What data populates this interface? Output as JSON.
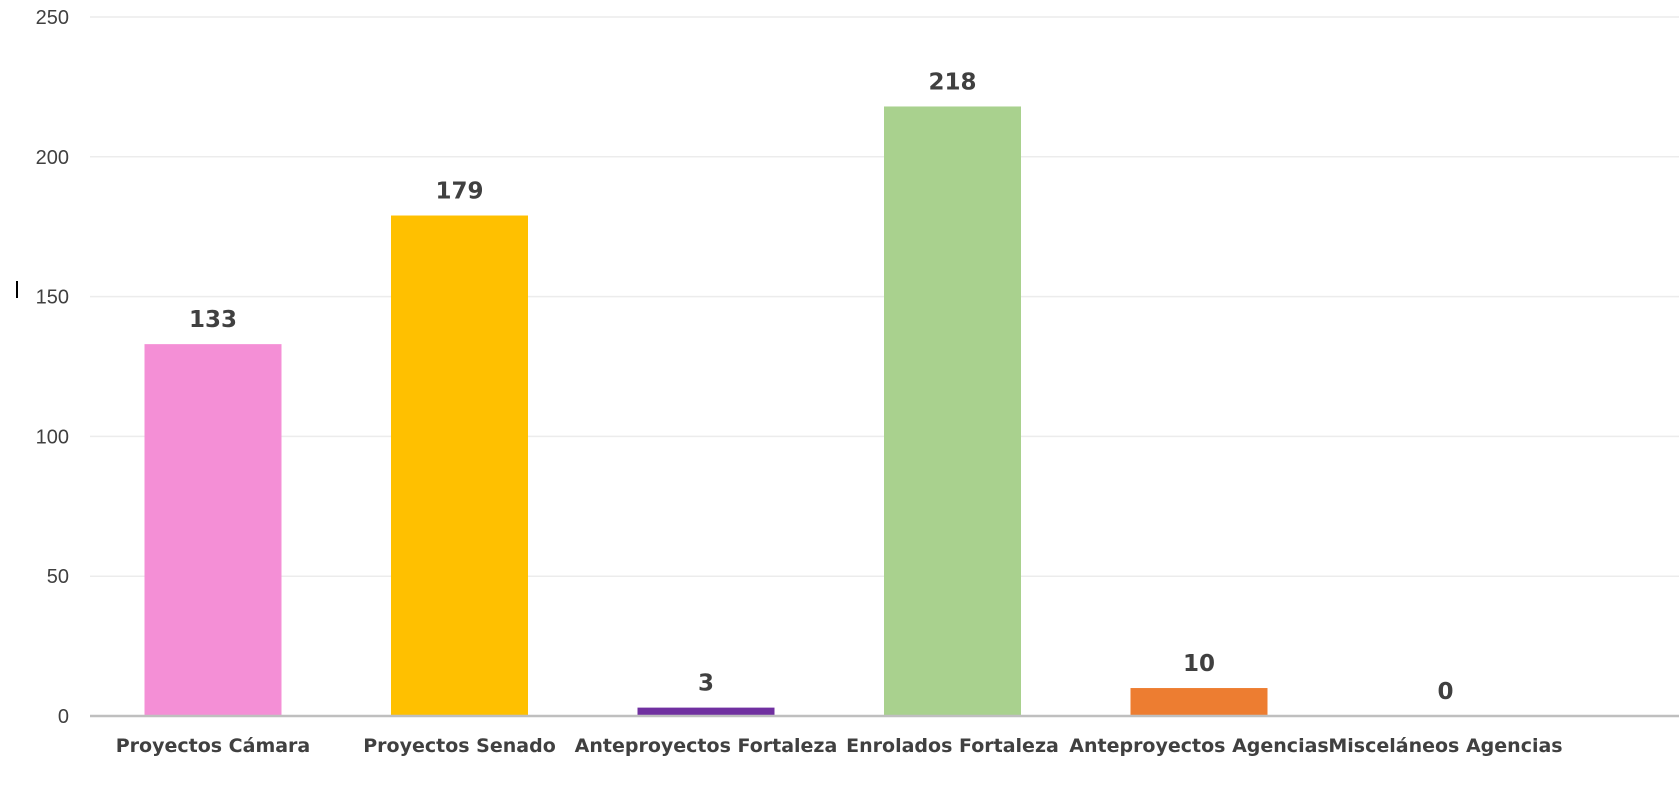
{
  "chart_data": {
    "type": "bar",
    "title": "",
    "xlabel": "",
    "ylabel": "",
    "categories": [
      "Proyectos Cámara",
      "Proyectos Senado",
      "Anteproyectos Fortaleza",
      "Enrolados Fortaleza",
      "Anteproyectos Agencias",
      "Misceláneos Agencias"
    ],
    "values": [
      133,
      179,
      3,
      218,
      10,
      0
    ],
    "colors": [
      "#f48fd6",
      "#ffc000",
      "#7030a0",
      "#a9d18e",
      "#ed7d31",
      "#a5a5a5"
    ],
    "ylim": [
      0,
      250
    ],
    "yticks": [
      0,
      50,
      100,
      150,
      200,
      250
    ],
    "grid": true,
    "data_labels": true,
    "gridline_color": "#ececec",
    "axis_color": "#bfbfbf"
  }
}
